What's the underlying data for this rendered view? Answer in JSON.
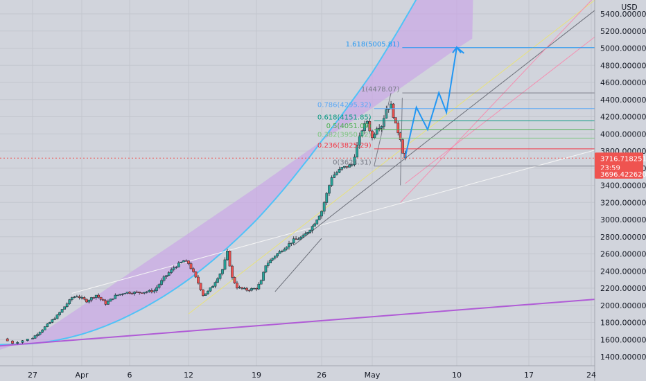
{
  "chart_data": {
    "type": "candlestick",
    "symbol_currency": "USD",
    "x_ticks": [
      "27",
      "Apr",
      "6",
      "12",
      "19",
      "26",
      "May",
      "10",
      "17",
      "24"
    ],
    "y_ticks": [
      1400,
      1600,
      1800,
      2000,
      2200,
      2400,
      2600,
      2800,
      3000,
      3200,
      3400,
      3600,
      3800,
      4000,
      4200,
      4400,
      4600,
      4800,
      5000,
      5200,
      5400
    ],
    "y_tick_labels": [
      "1400.000000",
      "1600.000000",
      "1800.000000",
      "2000.000000",
      "2200.000000",
      "2400.000000",
      "2600.000000",
      "2800.000000",
      "3000.000000",
      "3200.000000",
      "3400.000000",
      "3600.000000",
      "3800.000000",
      "4000.000000",
      "4200.000000",
      "4400.000000",
      "4600.000000",
      "4800.000000",
      "5000.000000",
      "5200.000000",
      "5400.000000"
    ],
    "ylim": [
      1280,
      5520
    ],
    "price_path": [
      [
        -0.5,
        1610
      ],
      [
        0.0,
        1560
      ],
      [
        1.0,
        1620
      ],
      [
        2.0,
        1720
      ],
      [
        3.5,
        1880
      ],
      [
        5.0,
        2090
      ],
      [
        5.5,
        2110
      ],
      [
        6.5,
        2050
      ],
      [
        7.5,
        2120
      ],
      [
        8.5,
        2020
      ],
      [
        9.5,
        2110
      ],
      [
        10.5,
        2150
      ],
      [
        12.0,
        2150
      ],
      [
        13.5,
        2170
      ],
      [
        14.5,
        2320
      ],
      [
        15.5,
        2440
      ],
      [
        16.5,
        2520
      ],
      [
        17.0,
        2490
      ],
      [
        17.5,
        2380
      ],
      [
        18.0,
        2260
      ],
      [
        18.5,
        2120
      ],
      [
        19.0,
        2160
      ],
      [
        19.5,
        2230
      ],
      [
        20.5,
        2420
      ],
      [
        21.0,
        2620
      ],
      [
        21.5,
        2320
      ],
      [
        22.0,
        2210
      ],
      [
        23.0,
        2180
      ],
      [
        24.0,
        2200
      ],
      [
        24.5,
        2280
      ],
      [
        25.0,
        2470
      ],
      [
        26.0,
        2580
      ],
      [
        27.0,
        2670
      ],
      [
        28.0,
        2760
      ],
      [
        29.0,
        2800
      ],
      [
        30.0,
        2920
      ],
      [
        31.0,
        3100
      ],
      [
        31.5,
        3300
      ],
      [
        32.0,
        3500
      ],
      [
        33.0,
        3600
      ],
      [
        34.0,
        3640
      ],
      [
        34.5,
        3860
      ],
      [
        35.0,
        4050
      ],
      [
        35.5,
        4150
      ],
      [
        36.0,
        3950
      ],
      [
        36.5,
        4080
      ],
      [
        37.0,
        4100
      ],
      [
        37.5,
        4290
      ],
      [
        38.0,
        4330
      ],
      [
        38.5,
        4100
      ],
      [
        39.0,
        3950
      ],
      [
        39.3,
        3760
      ],
      [
        39.5,
        3720
      ]
    ],
    "last_price": "3716.718251",
    "countdown": "23:59",
    "prev_close_label": "3696.422620",
    "fibonacci_levels": [
      {
        "label": "1.618(5005.81)",
        "price": 5005.81,
        "color": "#2196f3"
      },
      {
        "label": "1(4478.07)",
        "price": 4478.07,
        "color": "#787b86"
      },
      {
        "label": "0.786(4295.32)",
        "price": 4295.32,
        "color": "#5ba8f5"
      },
      {
        "label": "0.618(4151.85)",
        "price": 4151.85,
        "color": "#089981"
      },
      {
        "label": "0.5(4051.09)",
        "price": 4051.09,
        "color": "#4caf50"
      },
      {
        "label": "0.382(3950.32)",
        "price": 3950.32,
        "color": "#81c784"
      },
      {
        "label": "0.236(3825.29)",
        "price": 3825.29,
        "color": "#f23645"
      },
      {
        "label": "0(3624.31)",
        "price": 3624.31,
        "color": "#787b86"
      }
    ],
    "projection_path": [
      [
        39.5,
        3720
      ],
      [
        40.7,
        4310
      ],
      [
        41.9,
        4050
      ],
      [
        43.1,
        4480
      ],
      [
        43.9,
        4250
      ],
      [
        45.0,
        5010
      ],
      [
        45.7,
        4940
      ]
    ],
    "colors": {
      "background": "#d1d4dc",
      "channel_fill": "#c9a4e6",
      "lower_curve": "#4fc3f7",
      "trendline_purple": "#b05bd6",
      "candle_up": "#26a69a",
      "candle_down": "#ef5350",
      "price_badge": "#ef5350",
      "projection": "#2196f3"
    }
  }
}
